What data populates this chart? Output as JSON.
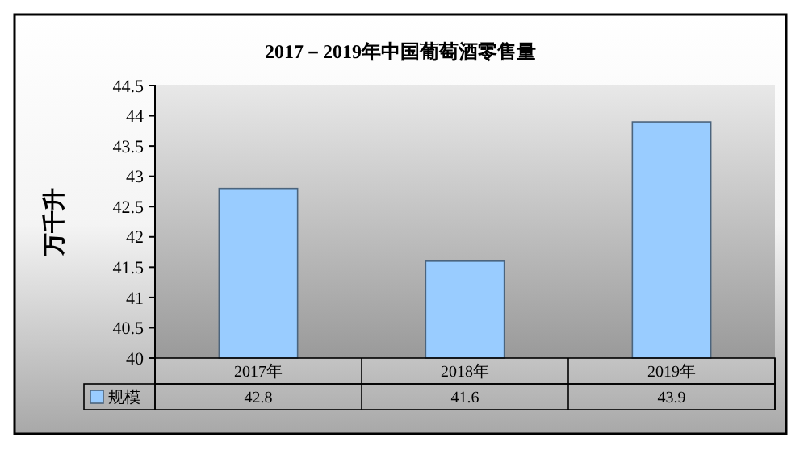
{
  "chart_data": {
    "type": "bar",
    "title": "2017－2019年中国葡萄酒零售量",
    "ylabel": "万千升",
    "categories": [
      "2017年",
      "2018年",
      "2019年"
    ],
    "series": [
      {
        "name": "规模",
        "color": "#99ccff",
        "values": [
          42.8,
          41.6,
          43.9
        ]
      }
    ],
    "ylim": [
      40,
      44.5
    ],
    "yticks": [
      40,
      40.5,
      41,
      41.5,
      42,
      42.5,
      43,
      43.5,
      44,
      44.5
    ],
    "data_labels": true,
    "legend": "bottom left",
    "grid": false
  }
}
